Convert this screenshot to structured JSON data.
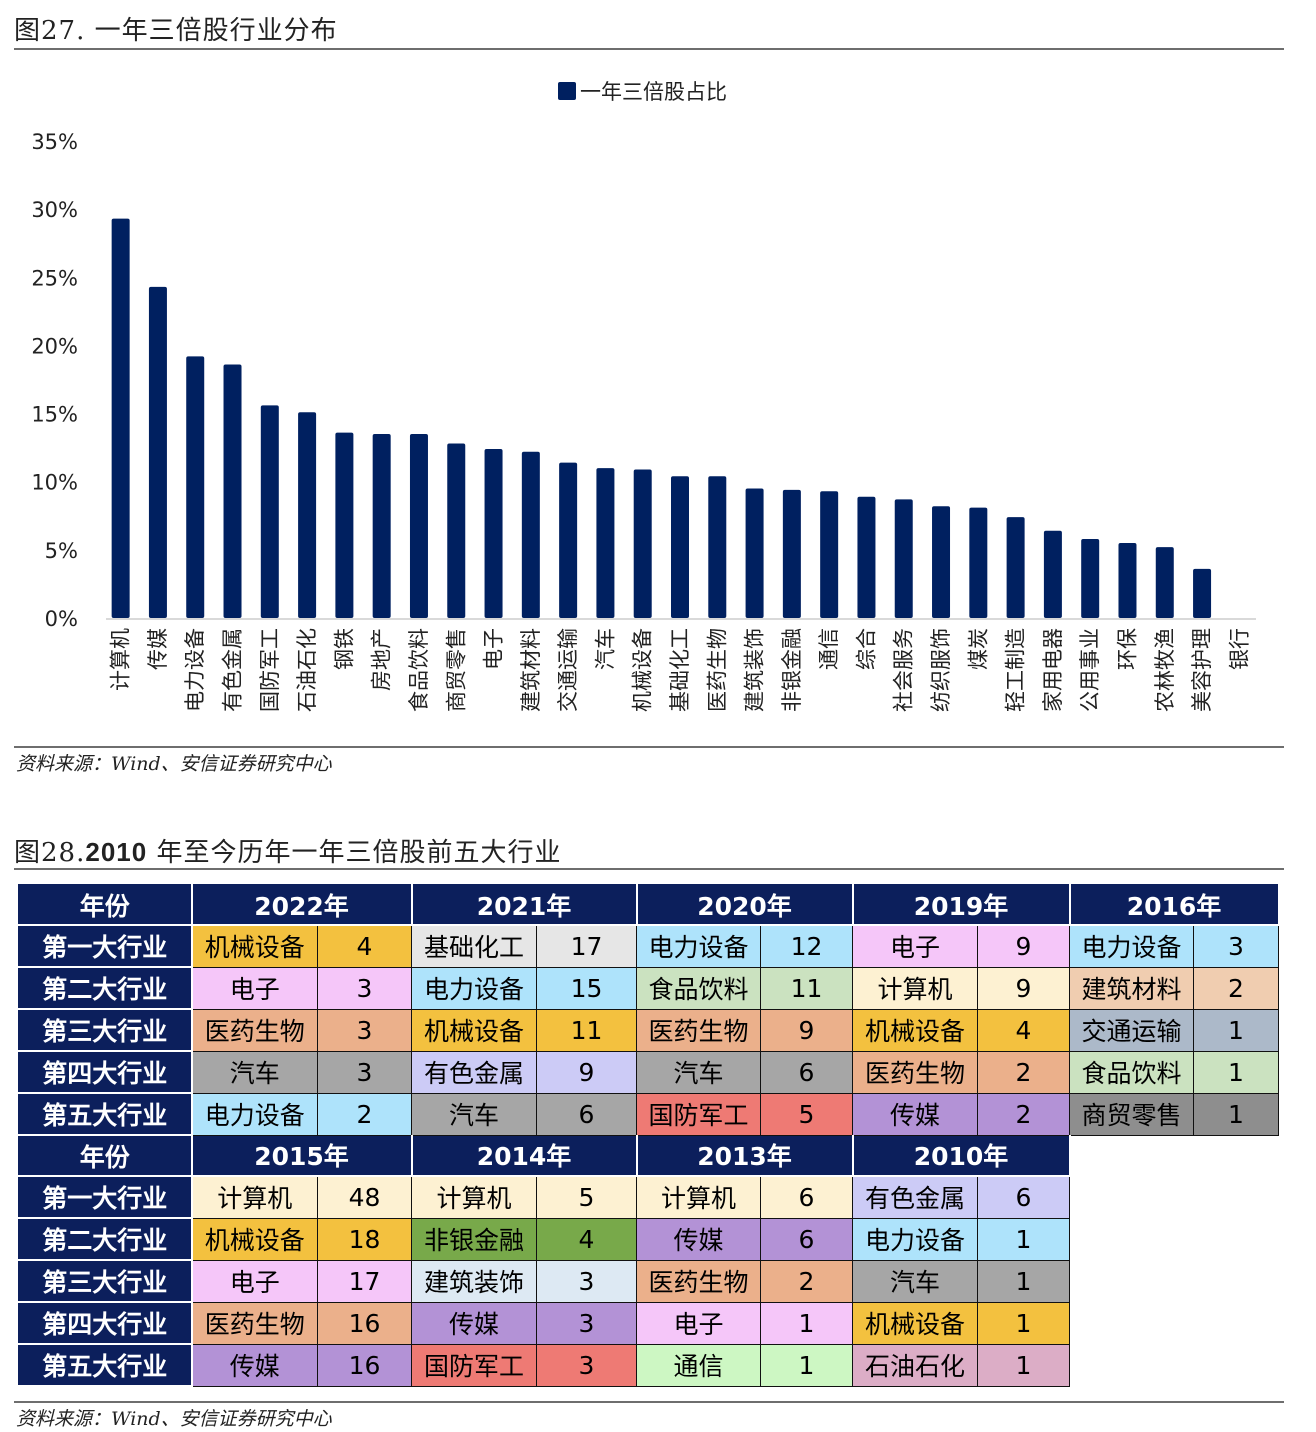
{
  "figure27": {
    "title": "图27. 一年三倍股行业分布",
    "source": "资料来源：Wind、安信证券研究中心"
  },
  "chart_data": {
    "type": "bar",
    "title": "",
    "legend": [
      "一年三倍股占比"
    ],
    "legend_position": "top-center",
    "xlabel": "",
    "ylabel": "",
    "ylim": [
      0,
      0.35
    ],
    "yticks": [
      0,
      0.05,
      0.1,
      0.15,
      0.2,
      0.25,
      0.3,
      0.35
    ],
    "ytick_labels": [
      "0%",
      "5%",
      "10%",
      "15%",
      "20%",
      "25%",
      "30%",
      "35%"
    ],
    "grid": false,
    "bar_color": "#002060",
    "categories": [
      "计算机",
      "传媒",
      "电力设备",
      "有色金属",
      "国防军工",
      "石油石化",
      "钢铁",
      "房地产",
      "食品饮料",
      "商贸零售",
      "电子",
      "建筑材料",
      "交通运输",
      "汽车",
      "机械设备",
      "基础化工",
      "医药生物",
      "建筑装饰",
      "非银金融",
      "通信",
      "综合",
      "社会服务",
      "纺织服饰",
      "煤炭",
      "轻工制造",
      "家用电器",
      "公用事业",
      "环保",
      "农林牧渔",
      "美容护理",
      "银行"
    ],
    "series": [
      {
        "name": "一年三倍股占比",
        "values": [
          0.293,
          0.243,
          0.192,
          0.186,
          0.156,
          0.151,
          0.136,
          0.135,
          0.135,
          0.128,
          0.124,
          0.122,
          0.114,
          0.11,
          0.109,
          0.104,
          0.104,
          0.095,
          0.094,
          0.093,
          0.089,
          0.087,
          0.082,
          0.081,
          0.074,
          0.064,
          0.058,
          0.055,
          0.052,
          0.036,
          0.0
        ]
      }
    ]
  },
  "figure28": {
    "title_prefix": "图28.",
    "title_year": "2010",
    "title_rest": " 年至今历年一年三倍股前五大行业",
    "source": "资料来源：Wind、安信证券研究中心",
    "year_header": "年份",
    "rank_labels": [
      "第一大行业",
      "第二大行业",
      "第三大行业",
      "第四大行业",
      "第五大行业"
    ],
    "blocks": [
      {
        "years": [
          {
            "year": "2022年",
            "rows": [
              [
                "机械设备",
                "4"
              ],
              [
                "电子",
                "3"
              ],
              [
                "医药生物",
                "3"
              ],
              [
                "汽车",
                "3"
              ],
              [
                "电力设备",
                "2"
              ]
            ]
          },
          {
            "year": "2021年",
            "rows": [
              [
                "基础化工",
                "17"
              ],
              [
                "电力设备",
                "15"
              ],
              [
                "机械设备",
                "11"
              ],
              [
                "有色金属",
                "9"
              ],
              [
                "汽车",
                "6"
              ]
            ]
          },
          {
            "year": "2020年",
            "rows": [
              [
                "电力设备",
                "12"
              ],
              [
                "食品饮料",
                "11"
              ],
              [
                "医药生物",
                "9"
              ],
              [
                "汽车",
                "6"
              ],
              [
                "国防军工",
                "5"
              ]
            ]
          },
          {
            "year": "2019年",
            "rows": [
              [
                "电子",
                "9"
              ],
              [
                "计算机",
                "9"
              ],
              [
                "机械设备",
                "4"
              ],
              [
                "医药生物",
                "2"
              ],
              [
                "传媒",
                "2"
              ]
            ]
          },
          {
            "year": "2016年",
            "rows": [
              [
                "电力设备",
                "3"
              ],
              [
                "建筑材料",
                "2"
              ],
              [
                "交通运输",
                "1"
              ],
              [
                "食品饮料",
                "1"
              ],
              [
                "商贸零售",
                "1"
              ]
            ]
          }
        ]
      },
      {
        "years": [
          {
            "year": "2015年",
            "rows": [
              [
                "计算机",
                "48"
              ],
              [
                "机械设备",
                "18"
              ],
              [
                "电子",
                "17"
              ],
              [
                "医药生物",
                "16"
              ],
              [
                "传媒",
                "16"
              ]
            ]
          },
          {
            "year": "2014年",
            "rows": [
              [
                "计算机",
                "5"
              ],
              [
                "非银金融",
                "4"
              ],
              [
                "建筑装饰",
                "3"
              ],
              [
                "传媒",
                "3"
              ],
              [
                "国防军工",
                "3"
              ]
            ]
          },
          {
            "year": "2013年",
            "rows": [
              [
                "计算机",
                "6"
              ],
              [
                "传媒",
                "6"
              ],
              [
                "医药生物",
                "2"
              ],
              [
                "电子",
                "1"
              ],
              [
                "通信",
                "1"
              ]
            ]
          },
          {
            "year": "2010年",
            "rows": [
              [
                "有色金属",
                "6"
              ],
              [
                "电力设备",
                "1"
              ],
              [
                "汽车",
                "1"
              ],
              [
                "机械设备",
                "1"
              ],
              [
                "石油石化",
                "1"
              ]
            ]
          }
        ]
      }
    ],
    "industry_colors": {
      "机械设备": "#f3c13f",
      "电子": "#f5c6f9",
      "医药生物": "#ebb08b",
      "汽车": "#a6a6a6",
      "电力设备": "#aee3fb",
      "基础化工": "#e6e6e6",
      "有色金属": "#cccbf6",
      "食品饮料": "#cbe2c0",
      "国防军工": "#ee7a74",
      "计算机": "#fdf1d2",
      "传媒": "#b392d6",
      "建筑材料": "#f0cdb0",
      "交通运输": "#acb9c9",
      "商贸零售": "#8e8e8e",
      "非银金融": "#78a94a",
      "建筑装饰": "#dde9f3",
      "通信": "#cdf7c3",
      "石油石化": "#dcadc6"
    },
    "header_color": "#0c1f5c"
  }
}
